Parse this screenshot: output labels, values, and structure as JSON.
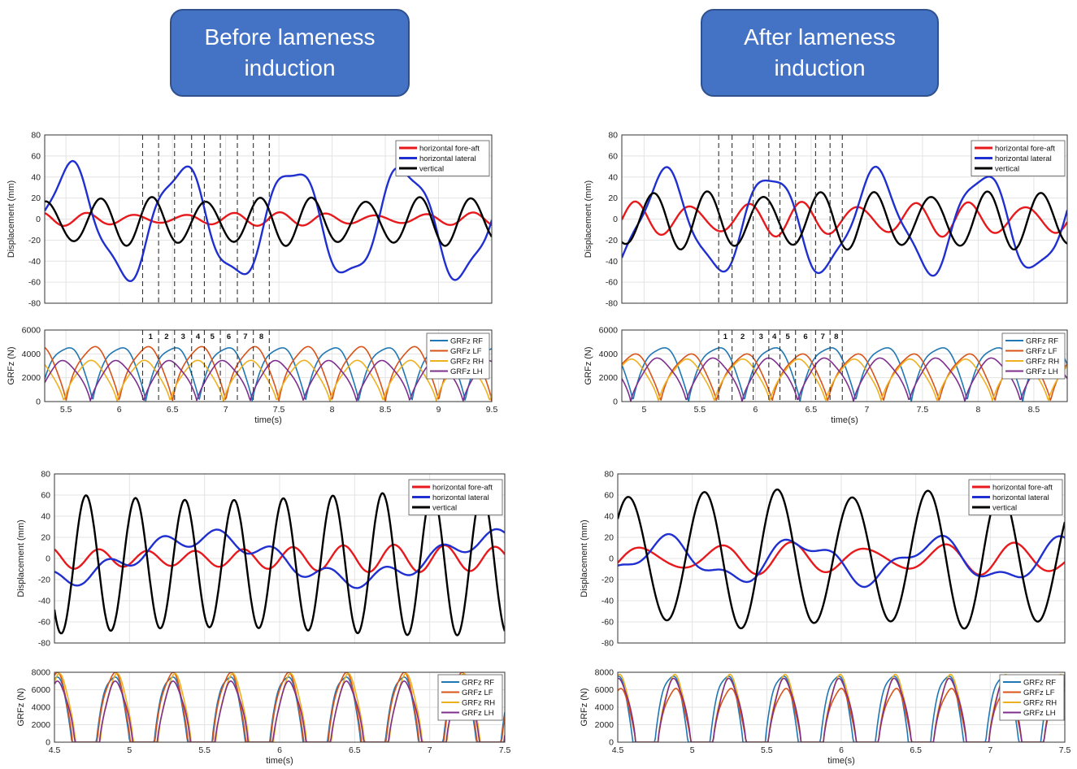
{
  "banners": {
    "before": "Before lameness\ninduction",
    "after": "After lameness\ninduction"
  },
  "colors": {
    "fore_aft": "#e8191c",
    "lateral": "#1f2fd0",
    "vertical": "#000000",
    "rf": "#1f77b4",
    "lf": "#d95319",
    "rh": "#edb120",
    "lh": "#7e2f8e"
  },
  "chart_data": [
    {
      "id": "p1",
      "type": "line",
      "ylabel": "Displacement (mm)",
      "xlim": [
        5.3,
        9.5
      ],
      "ylim": [
        -80,
        80
      ],
      "yticks": [
        -80,
        -60,
        -40,
        -20,
        0,
        20,
        40,
        60,
        80
      ],
      "markers": [
        6.22,
        6.37,
        6.52,
        6.68,
        6.8,
        6.95,
        7.11,
        7.26,
        7.41
      ],
      "series": [
        {
          "name": "horizontal fore-aft",
          "color": "#e8191c",
          "mean": 0,
          "amp": 5,
          "period": 0.45,
          "phase": 0.2,
          "noise": 0.3
        },
        {
          "name": "horizontal lateral",
          "color": "#1f2fd0",
          "mean": -3,
          "amp": 52,
          "period": 1.05,
          "phase": 5.27,
          "noise": 0.15
        },
        {
          "name": "vertical",
          "color": "#000000",
          "mean": -2,
          "amp": 21,
          "period": 0.5,
          "phase": 5.69,
          "noise": 0.12
        }
      ]
    },
    {
      "id": "p2",
      "type": "line",
      "ylabel": "GRFz (N)",
      "xlabel": "time(s)",
      "xlim": [
        5.3,
        9.5
      ],
      "ylim": [
        0,
        6000
      ],
      "yticks": [
        0,
        2000,
        4000,
        6000
      ],
      "xticks": [
        5.5,
        6,
        6.5,
        7,
        7.5,
        8,
        8.5,
        9,
        9.5
      ],
      "xticklabels": [
        "5.5",
        "6",
        "6.5",
        "7",
        "7.5",
        "8",
        "8.5",
        "9",
        "9.5"
      ],
      "markers": [
        6.22,
        6.37,
        6.52,
        6.68,
        6.8,
        6.95,
        7.11,
        7.26,
        7.41
      ],
      "marker_labels": [
        "1",
        "2",
        "3",
        "4",
        "5",
        "6",
        "7",
        "8"
      ],
      "stance": 0.5,
      "series": [
        {
          "name": "GRFz RF",
          "color": "#1f77b4",
          "peak": 4600,
          "start": 5.75,
          "period": 0.5
        },
        {
          "name": "GRFz LF",
          "color": "#d95319",
          "peak": 4500,
          "start": 5.5,
          "period": 0.5
        },
        {
          "name": "GRFz RH",
          "color": "#edb120",
          "peak": 3300,
          "start": 5.98,
          "period": 0.5
        },
        {
          "name": "GRFz LH",
          "color": "#7e2f8e",
          "peak": 3300,
          "start": 5.73,
          "period": 0.5
        }
      ]
    },
    {
      "id": "p3",
      "type": "line",
      "ylabel": "Displacement (mm)",
      "xlim": [
        4.8,
        8.8
      ],
      "ylim": [
        -80,
        80
      ],
      "yticks": [
        -80,
        -60,
        -40,
        -20,
        0,
        20,
        40,
        60,
        80
      ],
      "markers": [
        5.67,
        5.79,
        5.98,
        6.12,
        6.22,
        6.36,
        6.54,
        6.67,
        6.78
      ],
      "series": [
        {
          "name": "horizontal fore-aft",
          "color": "#e8191c",
          "mean": 0,
          "amp": 14,
          "period": 0.5,
          "phase": 6.8,
          "noise": 0.2
        },
        {
          "name": "horizontal lateral",
          "color": "#1f2fd0",
          "mean": -3,
          "amp": 46,
          "period": 0.95,
          "phase": 4.95,
          "noise": 0.15
        },
        {
          "name": "vertical",
          "color": "#000000",
          "mean": -1,
          "amp": 25,
          "period": 0.5,
          "phase": 5.45,
          "noise": 0.12
        }
      ]
    },
    {
      "id": "p4",
      "type": "line",
      "ylabel": "GRFz (N)",
      "xlabel": "time(s)",
      "xlim": [
        4.8,
        8.8
      ],
      "ylim": [
        0,
        6000
      ],
      "yticks": [
        0,
        2000,
        4000,
        6000
      ],
      "xticks": [
        5,
        5.5,
        6,
        6.5,
        7,
        7.5,
        8,
        8.5
      ],
      "xticklabels": [
        "5",
        "5.5",
        "6",
        "6.5",
        "7",
        "7.5",
        "8",
        "8.5"
      ],
      "markers": [
        5.67,
        5.79,
        5.98,
        6.12,
        6.22,
        6.36,
        6.54,
        6.67,
        6.78
      ],
      "marker_labels": [
        "1",
        "2",
        "3",
        "4",
        "5",
        "6",
        "7",
        "8"
      ],
      "stance": 0.5,
      "series": [
        {
          "name": "GRFz RF",
          "color": "#1f77b4",
          "peak": 4600,
          "start": 5.4,
          "period": 0.5
        },
        {
          "name": "GRFz LF",
          "color": "#d95319",
          "peak": 3900,
          "start": 5.15,
          "period": 0.5
        },
        {
          "name": "GRFz RH",
          "color": "#edb120",
          "peak": 3400,
          "start": 5.63,
          "period": 0.5
        },
        {
          "name": "GRFz LH",
          "color": "#7e2f8e",
          "peak": 3500,
          "start": 5.38,
          "period": 0.5
        }
      ]
    },
    {
      "id": "p5",
      "type": "line",
      "ylabel": "Displacement (mm)",
      "xlim": [
        4.5,
        7.5
      ],
      "ylim": [
        -80,
        80
      ],
      "yticks": [
        -80,
        -60,
        -40,
        -20,
        0,
        20,
        40,
        60,
        80
      ],
      "series": [
        {
          "name": "horizontal fore-aft",
          "color": "#e8191c",
          "mean": 0,
          "amp": 10,
          "period": 0.33,
          "phase": 4.7,
          "noise": 0.3
        },
        {
          "name": "horizontal lateral",
          "color": "#1f2fd0",
          "mean": 0,
          "amp": 20,
          "period": 2.0,
          "phase": 5.0,
          "noise": 0.4
        },
        {
          "name": "vertical",
          "color": "#000000",
          "mean": -5,
          "amp": 64,
          "period": 0.33,
          "phase": 4.625,
          "noise": 0.06
        }
      ]
    },
    {
      "id": "p6",
      "type": "line",
      "ylabel": "GRFz (N)",
      "xlabel": "time(s)",
      "xlim": [
        4.5,
        7.5
      ],
      "ylim": [
        0,
        8000
      ],
      "yticks": [
        0,
        2000,
        4000,
        6000,
        8000
      ],
      "xticks": [
        4.5,
        5,
        5.5,
        6,
        6.5,
        7,
        7.5
      ],
      "xticklabels": [
        "4.5",
        "5",
        "5.5",
        "6",
        "6.5",
        "7",
        "7.5"
      ],
      "stance": 0.22,
      "series": [
        {
          "name": "GRFz RF",
          "color": "#1f77b4",
          "peak": 7600,
          "start": 4.78,
          "period": 0.385
        },
        {
          "name": "GRFz LF",
          "color": "#d95319",
          "peak": 7800,
          "start": 4.4,
          "period": 0.385
        },
        {
          "name": "GRFz RH",
          "color": "#edb120",
          "peak": 7500,
          "start": 4.42,
          "period": 0.385
        },
        {
          "name": "GRFz LH",
          "color": "#7e2f8e",
          "peak": 6700,
          "start": 4.8,
          "period": 0.385
        }
      ]
    },
    {
      "id": "p7",
      "type": "line",
      "ylabel": "Displacement (mm)",
      "xlim": [
        4.5,
        7.5
      ],
      "ylim": [
        -80,
        80
      ],
      "yticks": [
        -80,
        -60,
        -40,
        -20,
        0,
        20,
        40,
        60,
        80
      ],
      "series": [
        {
          "name": "horizontal fore-aft",
          "color": "#e8191c",
          "mean": 0,
          "amp": 12,
          "period": 0.5,
          "phase": 4.55,
          "noise": 0.3
        },
        {
          "name": "horizontal lateral",
          "color": "#1f2fd0",
          "mean": -2,
          "amp": 18,
          "period": 0.9,
          "phase": 4.6,
          "noise": 0.4
        },
        {
          "name": "vertical",
          "color": "#000000",
          "mean": 0,
          "amp": 62,
          "period": 0.5,
          "phase": 4.95,
          "noise": 0.07
        }
      ]
    },
    {
      "id": "p8",
      "type": "line",
      "ylabel": "GRFz (N)",
      "xlabel": "time(s)",
      "xlim": [
        4.5,
        7.5
      ],
      "ylim": [
        0,
        8000
      ],
      "yticks": [
        0,
        2000,
        4000,
        6000,
        8000
      ],
      "xticks": [
        4.5,
        5,
        5.5,
        6,
        6.5,
        7,
        7.5
      ],
      "xticklabels": [
        "4.5",
        "5",
        "5.5",
        "6",
        "6.5",
        "7",
        "7.5"
      ],
      "stance": 0.22,
      "series": [
        {
          "name": "GRFz RF",
          "color": "#1f77b4",
          "peak": 7700,
          "start": 4.75,
          "period": 0.37
        },
        {
          "name": "GRFz LF",
          "color": "#d95319",
          "peak": 6000,
          "start": 4.4,
          "period": 0.37
        },
        {
          "name": "GRFz RH",
          "color": "#edb120",
          "peak": 7400,
          "start": 4.4,
          "period": 0.37
        },
        {
          "name": "GRFz LH",
          "color": "#7e2f8e",
          "peak": 7000,
          "start": 4.77,
          "period": 0.37
        }
      ]
    }
  ]
}
